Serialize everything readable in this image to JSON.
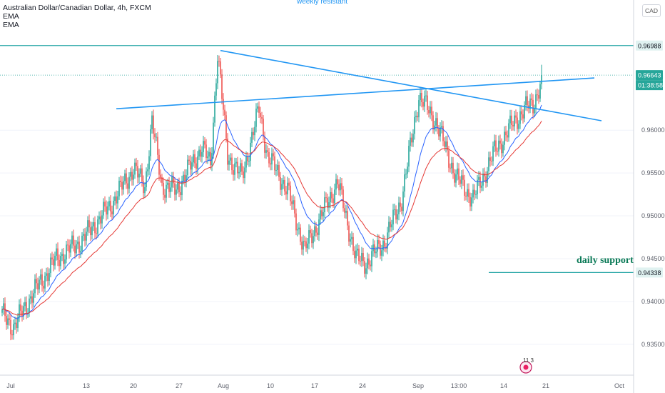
{
  "legend": {
    "title": "Australian Dollar/Canadian Dollar, 4h, FXCM",
    "ema1": "EMA",
    "ema2": "EMA"
  },
  "currency": "CAD",
  "annotations": {
    "top": "weekly resistant",
    "support": "daily support",
    "badge": "11 3"
  },
  "price_labels": {
    "resistance": "0.96988",
    "current": "0.96643",
    "countdown": "01:38:58",
    "support": "0.94338"
  },
  "colors": {
    "up": "#26a69a",
    "down": "#ef5350",
    "ema_fast": "#2962ff",
    "ema_slow": "#e53935",
    "trendline": "#2196f3",
    "level": "#26a6a6"
  },
  "chart_data": {
    "type": "candlestick",
    "x_ticks": [
      "Jul",
      "13",
      "20",
      "27",
      "Aug",
      "10",
      "17",
      "24",
      "Sep",
      "13:00",
      "14",
      "21",
      "Oct"
    ],
    "y_ticks": [
      "0.96000",
      "0.95500",
      "0.95000",
      "0.94500",
      "0.94000",
      "0.93500"
    ],
    "y_tick_values": [
      0.96,
      0.955,
      0.95,
      0.945,
      0.94,
      0.935
    ],
    "ylim": [
      0.9314,
      0.9752
    ],
    "anchors": [
      [
        0,
        0.9385
      ],
      [
        8,
        0.937
      ],
      [
        20,
        0.9405
      ],
      [
        38,
        0.945
      ],
      [
        55,
        0.947
      ],
      [
        75,
        0.951
      ],
      [
        92,
        0.9555
      ],
      [
        100,
        0.9535
      ],
      [
        105,
        0.961
      ],
      [
        112,
        0.9535
      ],
      [
        122,
        0.953
      ],
      [
        140,
        0.958
      ],
      [
        146,
        0.956
      ],
      [
        151,
        0.969
      ],
      [
        158,
        0.957
      ],
      [
        168,
        0.9545
      ],
      [
        180,
        0.9625
      ],
      [
        186,
        0.957
      ],
      [
        200,
        0.953
      ],
      [
        212,
        0.946
      ],
      [
        225,
        0.9505
      ],
      [
        235,
        0.954
      ],
      [
        248,
        0.945
      ],
      [
        255,
        0.9445
      ],
      [
        268,
        0.947
      ],
      [
        280,
        0.952
      ],
      [
        292,
        0.964
      ],
      [
        304,
        0.961
      ],
      [
        318,
        0.9545
      ],
      [
        330,
        0.952
      ],
      [
        345,
        0.9575
      ],
      [
        358,
        0.9608
      ],
      [
        366,
        0.9625
      ],
      [
        372,
        0.963
      ],
      [
        378,
        0.9658
      ]
    ],
    "resistance_level": 0.96988,
    "support_level": 0.94338,
    "current_price": 0.96643,
    "trendlines": [
      {
        "from": [
          80,
          0.9625
        ],
        "to": [
          415,
          0.9661
        ]
      },
      {
        "from": [
          153,
          0.9693
        ],
        "to": [
          420,
          0.9611
        ]
      }
    ]
  }
}
